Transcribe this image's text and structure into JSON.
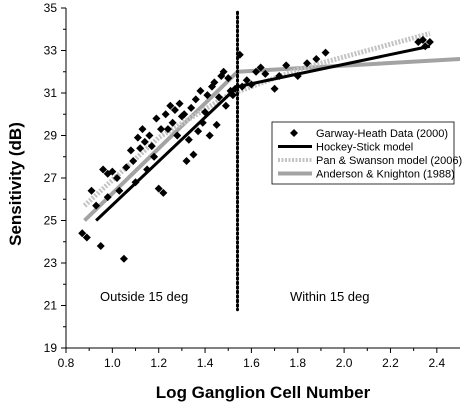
{
  "chart_data": {
    "type": "scatter",
    "xlabel": "Log Ganglion Cell Number",
    "ylabel": "Sensitivity (dB)",
    "xlim": [
      0.8,
      2.5
    ],
    "ylim": [
      19,
      35
    ],
    "x_ticks": [
      0.8,
      1.0,
      1.2,
      1.4,
      1.6,
      1.8,
      2.0,
      2.2,
      2.4
    ],
    "y_ticks": [
      19,
      21,
      23,
      25,
      27,
      29,
      31,
      33,
      35
    ],
    "x_tick_labels": [
      "0.8",
      "1.0",
      "1.2",
      "1.4",
      "1.6",
      "1.8",
      "2.0",
      "2.2",
      "2.4"
    ],
    "y_tick_labels": [
      "19",
      "21",
      "23",
      "25",
      "27",
      "29",
      "31",
      "33",
      "35"
    ],
    "grid": false,
    "legend_position": "right",
    "boundary_x": 1.54,
    "annotations": [
      "Outside 15 deg",
      "Within 15 deg"
    ],
    "series": [
      {
        "name": "Garway-Heath Data (2000)",
        "kind": "scatter",
        "marker": "diamond",
        "color": "#000000",
        "points": [
          [
            0.87,
            24.4
          ],
          [
            0.89,
            24.2
          ],
          [
            0.91,
            26.4
          ],
          [
            0.93,
            25.7
          ],
          [
            0.95,
            23.8
          ],
          [
            0.96,
            27.4
          ],
          [
            0.98,
            27.2
          ],
          [
            0.98,
            26.1
          ],
          [
            1.0,
            27.3
          ],
          [
            1.02,
            27.0
          ],
          [
            1.03,
            26.4
          ],
          [
            1.05,
            23.2
          ],
          [
            1.06,
            27.5
          ],
          [
            1.08,
            28.3
          ],
          [
            1.09,
            27.8
          ],
          [
            1.1,
            26.8
          ],
          [
            1.11,
            28.9
          ],
          [
            1.12,
            28.4
          ],
          [
            1.13,
            29.3
          ],
          [
            1.14,
            28.7
          ],
          [
            1.15,
            27.4
          ],
          [
            1.16,
            29.0
          ],
          [
            1.17,
            28.5
          ],
          [
            1.18,
            28.0
          ],
          [
            1.19,
            29.8
          ],
          [
            1.2,
            26.5
          ],
          [
            1.21,
            29.3
          ],
          [
            1.22,
            26.3
          ],
          [
            1.23,
            30.0
          ],
          [
            1.24,
            29.3
          ],
          [
            1.25,
            30.4
          ],
          [
            1.26,
            29.6
          ],
          [
            1.27,
            30.2
          ],
          [
            1.28,
            29.0
          ],
          [
            1.29,
            30.5
          ],
          [
            1.3,
            29.9
          ],
          [
            1.31,
            30.0
          ],
          [
            1.32,
            27.8
          ],
          [
            1.33,
            28.8
          ],
          [
            1.34,
            30.3
          ],
          [
            1.35,
            28.1
          ],
          [
            1.36,
            30.7
          ],
          [
            1.37,
            29.2
          ],
          [
            1.38,
            31.1
          ],
          [
            1.39,
            29.6
          ],
          [
            1.4,
            30.1
          ],
          [
            1.41,
            30.9
          ],
          [
            1.42,
            29.0
          ],
          [
            1.43,
            31.3
          ],
          [
            1.44,
            31.5
          ],
          [
            1.45,
            29.5
          ],
          [
            1.46,
            30.8
          ],
          [
            1.47,
            31.8
          ],
          [
            1.48,
            32.0
          ],
          [
            1.49,
            30.4
          ],
          [
            1.5,
            31.7
          ],
          [
            1.51,
            31.1
          ],
          [
            1.52,
            30.9
          ],
          [
            1.53,
            31.2
          ],
          [
            1.55,
            32.8
          ],
          [
            1.56,
            31.3
          ],
          [
            1.58,
            31.6
          ],
          [
            1.6,
            31.4
          ],
          [
            1.62,
            32.0
          ],
          [
            1.64,
            32.2
          ],
          [
            1.66,
            31.9
          ],
          [
            1.7,
            31.2
          ],
          [
            1.72,
            31.8
          ],
          [
            1.75,
            32.3
          ],
          [
            1.8,
            31.8
          ],
          [
            1.84,
            32.4
          ],
          [
            1.88,
            32.6
          ],
          [
            1.92,
            32.9
          ],
          [
            2.32,
            33.4
          ],
          [
            2.34,
            33.5
          ],
          [
            2.35,
            33.2
          ],
          [
            2.37,
            33.4
          ]
        ]
      },
      {
        "name": "Hockey-Stick model",
        "kind": "line",
        "color": "#000000",
        "width": 3,
        "points": [
          [
            0.93,
            25.0
          ],
          [
            1.54,
            31.3
          ],
          [
            2.37,
            33.2
          ]
        ]
      },
      {
        "name": "Pan & Swanson model (2006)",
        "kind": "line",
        "color": "#c4c4c4",
        "width": 5,
        "dash": "2 1.5",
        "points": [
          [
            0.88,
            25.7
          ],
          [
            1.2,
            28.9
          ],
          [
            1.5,
            30.9
          ],
          [
            1.8,
            32.1
          ],
          [
            2.1,
            33.0
          ],
          [
            2.37,
            33.8
          ]
        ]
      },
      {
        "name": "Anderson & Knighton (1988)",
        "kind": "line",
        "color": "#a3a3a3",
        "width": 4,
        "points": [
          [
            0.88,
            25.0
          ],
          [
            1.54,
            32.0
          ],
          [
            2.5,
            32.6
          ]
        ]
      }
    ]
  }
}
